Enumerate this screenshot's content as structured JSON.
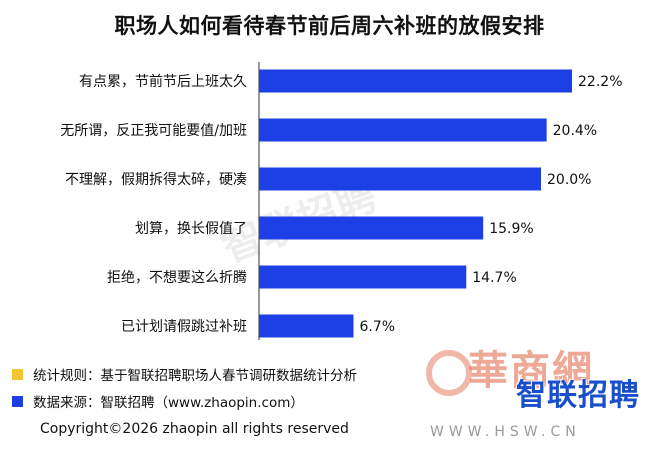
{
  "chart_data": {
    "type": "bar",
    "orientation": "horizontal",
    "title": "职场人如何看待春节前后周六补班的放假安排",
    "categories": [
      "有点累，节前节后上班太久",
      "无所谓，反正我可能要值/加班",
      "不理解，假期拆得太碎，硬凑",
      "划算，换长假值了",
      "拒绝，不想要这么折腾",
      "已计划请假跳过补班"
    ],
    "values": [
      22.2,
      20.4,
      20.0,
      15.9,
      14.7,
      6.7
    ],
    "value_labels": [
      "22.2%",
      "20.4%",
      "20.0%",
      "15.9%",
      "14.7%",
      "6.7%"
    ],
    "unit": "%",
    "xlim": [
      0,
      25
    ],
    "bar_color": "#1d3fe6",
    "grid": false,
    "legend": "none"
  },
  "watermark": "智联招聘",
  "notes": [
    {
      "text": "统计规则：基于智联招聘职场人春节调研数据统计分析",
      "color": "#f5c431"
    },
    {
      "text": "数据来源：智联招聘（www.zhaopin.com）",
      "color": "#1d3fe6"
    }
  ],
  "copyright": "Copyright©2026 zhaopin all rights reserved",
  "logo": {
    "red_text": "華商網",
    "blue_text": "智联招聘",
    "site": "WWW.HSW.CN"
  }
}
